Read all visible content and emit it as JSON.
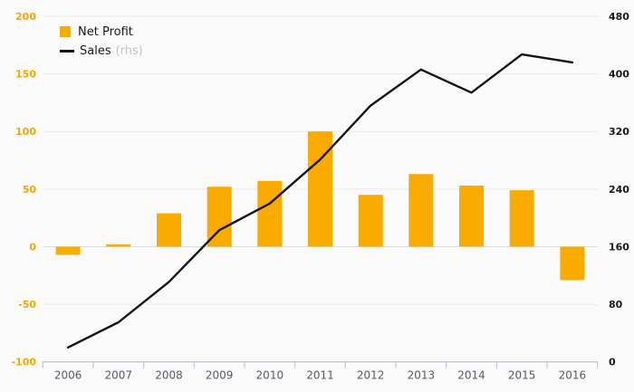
{
  "chart_data": {
    "type": "combo",
    "categories": [
      "2006",
      "2007",
      "2008",
      "2009",
      "2010",
      "2011",
      "2012",
      "2013",
      "2014",
      "2015",
      "2016"
    ],
    "series": [
      {
        "name": "Net Profit",
        "chart_type": "bar",
        "axis": "left",
        "values": [
          -7,
          2,
          29,
          52,
          57,
          100,
          45,
          63,
          53,
          49,
          -29
        ]
      },
      {
        "name": "Sales",
        "label_suffix": "(rhs)",
        "chart_type": "line",
        "axis": "right",
        "values": [
          20,
          55,
          111,
          183,
          220,
          281,
          356,
          406,
          374,
          427,
          416
        ]
      }
    ],
    "left_axis": {
      "min": -100,
      "max": 200,
      "tick_step": 50,
      "ticks": [
        200,
        150,
        100,
        50,
        0,
        -50,
        -100
      ]
    },
    "right_axis": {
      "min": 0,
      "max": 480,
      "tick_step": 80,
      "ticks": [
        480,
        400,
        320,
        240,
        160,
        80,
        0
      ]
    },
    "grid": true,
    "legend_position": "top-left"
  },
  "legend": {
    "items": [
      {
        "label": "Net Profit",
        "swatch": "square-icon"
      },
      {
        "label": "Sales",
        "note": "(rhs)",
        "swatch": "line-icon"
      }
    ]
  },
  "colors": {
    "background": "#FAFAFA",
    "bar": "#F9AB00",
    "line": "#141414",
    "grid": "#E9E9E9",
    "zero_grid": "#DCDCDC",
    "axis": "#BDC4DA",
    "left_labels": "#F6A500",
    "right_labels": "#1A1A1A",
    "x_labels": "#565B63",
    "legend_text": "#1A1A1A",
    "legend_note": "#C2C2C2"
  }
}
